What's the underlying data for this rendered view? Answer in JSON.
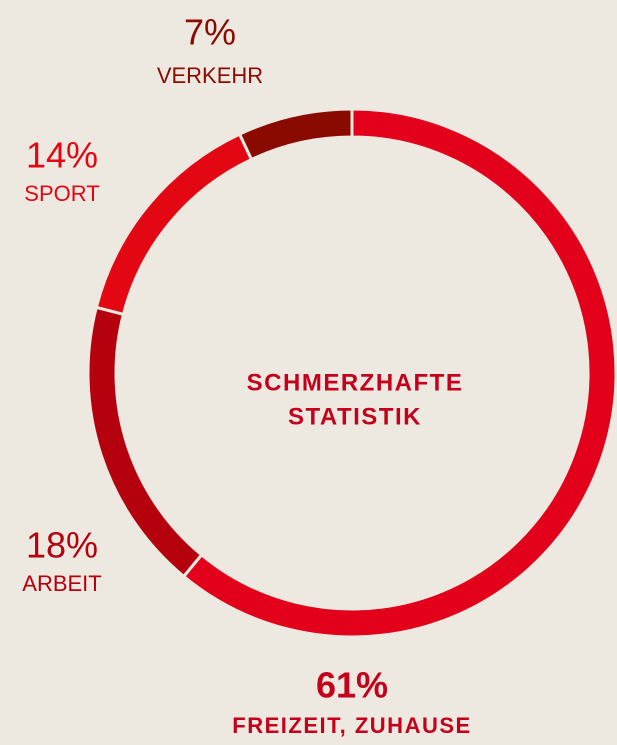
{
  "chart_data": {
    "type": "donut",
    "title_lines": [
      "SCHMERZHAFTE",
      "STATISTIK"
    ],
    "categories": [
      "FREIZEIT, ZUHAUSE",
      "ARBEIT",
      "SPORT",
      "VERKEHR"
    ],
    "values": [
      61,
      18,
      14,
      7
    ],
    "value_labels": [
      "61%",
      "18%",
      "14%",
      "7%"
    ],
    "colors": [
      "#e2001a",
      "#b5000e",
      "#e30613",
      "#8b0a00"
    ]
  }
}
